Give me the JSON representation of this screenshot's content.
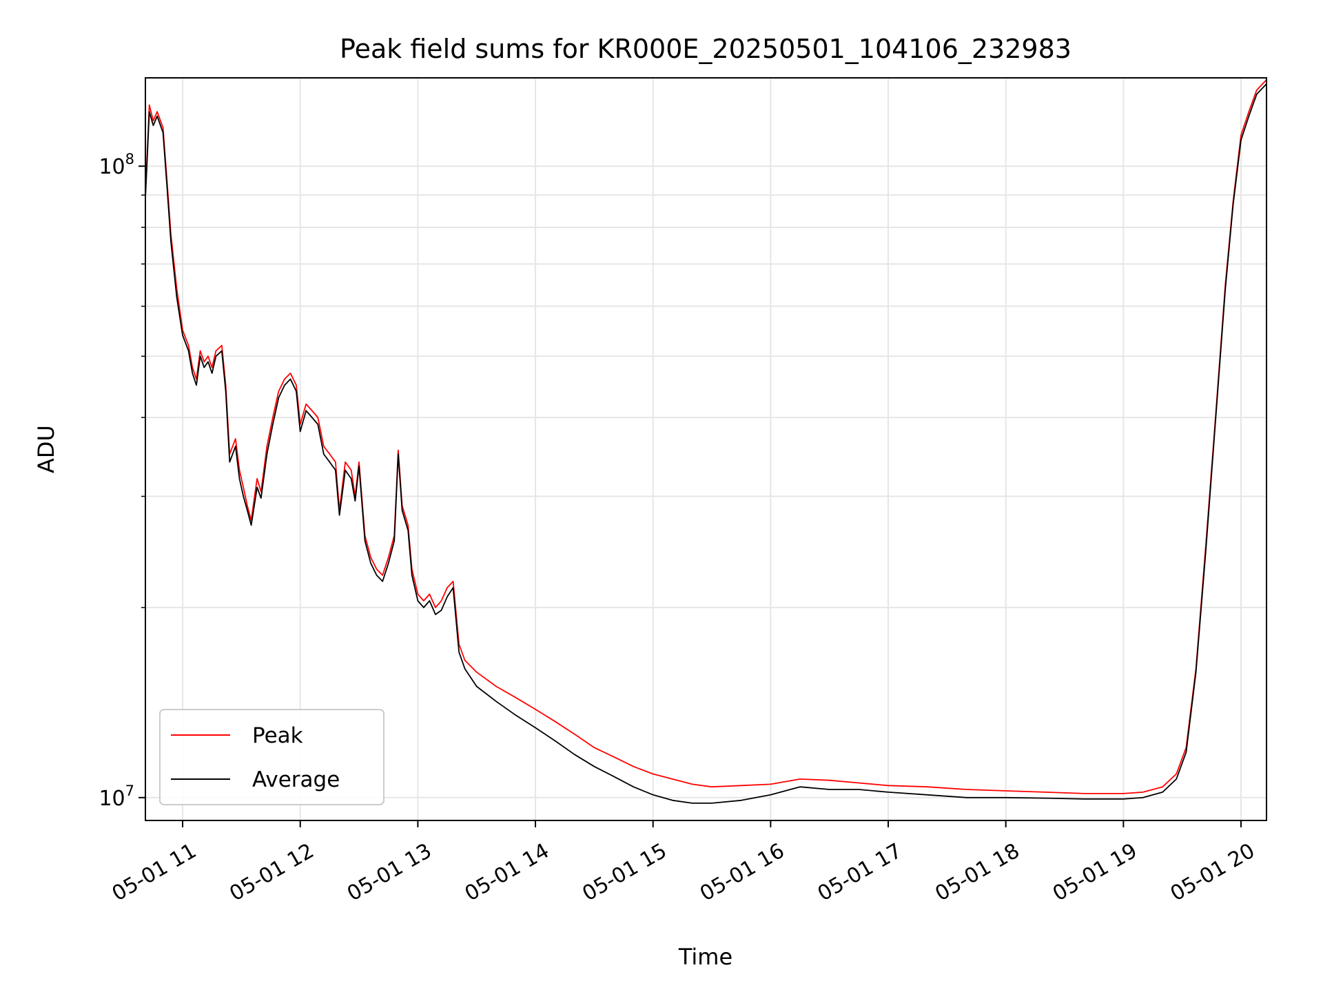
{
  "chart_data": {
    "type": "line",
    "title": "Peak field sums for KR000E_20250501_104106_232983",
    "xlabel": "Time",
    "ylabel": "ADU",
    "yscale": "log",
    "ylim": [
      9200000,
      138000000
    ],
    "xlim": [
      "05-01 10:41",
      "05-01 20:13"
    ],
    "grid": true,
    "legend_position": "lower-left",
    "x_ticks": [
      "05-01 11",
      "05-01 12",
      "05-01 13",
      "05-01 14",
      "05-01 15",
      "05-01 16",
      "05-01 17",
      "05-01 18",
      "05-01 19",
      "05-01 20"
    ],
    "y_ticks": [
      {
        "value": 10000000,
        "base": "10",
        "exp": "7"
      },
      {
        "value": 100000000,
        "base": "10",
        "exp": "8"
      }
    ],
    "series": [
      {
        "name": "Peak",
        "color": "#ff0000",
        "points": [
          [
            "05-01 10:41",
            90000000
          ],
          [
            "05-01 10:43",
            125000000
          ],
          [
            "05-01 10:45",
            118000000
          ],
          [
            "05-01 10:47",
            122000000
          ],
          [
            "05-01 10:50",
            115000000
          ],
          [
            "05-01 10:52",
            95000000
          ],
          [
            "05-01 10:54",
            78000000
          ],
          [
            "05-01 10:57",
            64000000
          ],
          [
            "05-01 11:00",
            55000000
          ],
          [
            "05-01 11:03",
            52000000
          ],
          [
            "05-01 11:05",
            48000000
          ],
          [
            "05-01 11:07",
            46000000
          ],
          [
            "05-01 11:09",
            51000000
          ],
          [
            "05-01 11:11",
            49000000
          ],
          [
            "05-01 11:13",
            50000000
          ],
          [
            "05-01 11:15",
            48000000
          ],
          [
            "05-01 11:17",
            51000000
          ],
          [
            "05-01 11:20",
            52000000
          ],
          [
            "05-01 11:22",
            45000000
          ],
          [
            "05-01 11:24",
            35000000
          ],
          [
            "05-01 11:27",
            37000000
          ],
          [
            "05-01 11:29",
            33000000
          ],
          [
            "05-01 11:31",
            31000000
          ],
          [
            "05-01 11:33",
            29000000
          ],
          [
            "05-01 11:35",
            27500000
          ],
          [
            "05-01 11:38",
            32000000
          ],
          [
            "05-01 11:40",
            30500000
          ],
          [
            "05-01 11:43",
            36000000
          ],
          [
            "05-01 11:46",
            40000000
          ],
          [
            "05-01 11:49",
            44000000
          ],
          [
            "05-01 11:52",
            46000000
          ],
          [
            "05-01 11:55",
            47000000
          ],
          [
            "05-01 11:58",
            45000000
          ],
          [
            "05-01 12:00",
            39000000
          ],
          [
            "05-01 12:03",
            42000000
          ],
          [
            "05-01 12:06",
            41000000
          ],
          [
            "05-01 12:09",
            40000000
          ],
          [
            "05-01 12:12",
            36000000
          ],
          [
            "05-01 12:15",
            35000000
          ],
          [
            "05-01 12:18",
            34000000
          ],
          [
            "05-01 12:20",
            28500000
          ],
          [
            "05-01 12:23",
            34000000
          ],
          [
            "05-01 12:26",
            33000000
          ],
          [
            "05-01 12:28",
            30000000
          ],
          [
            "05-01 12:30",
            34000000
          ],
          [
            "05-01 12:33",
            26000000
          ],
          [
            "05-01 12:36",
            24000000
          ],
          [
            "05-01 12:39",
            23000000
          ],
          [
            "05-01 12:42",
            22500000
          ],
          [
            "05-01 12:45",
            24000000
          ],
          [
            "05-01 12:48",
            26000000
          ],
          [
            "05-01 12:50",
            35500000
          ],
          [
            "05-01 12:52",
            29000000
          ],
          [
            "05-01 12:55",
            27000000
          ],
          [
            "05-01 12:57",
            23000000
          ],
          [
            "05-01 13:00",
            21000000
          ],
          [
            "05-01 13:03",
            20500000
          ],
          [
            "05-01 13:06",
            21000000
          ],
          [
            "05-01 13:09",
            20000000
          ],
          [
            "05-01 13:12",
            20500000
          ],
          [
            "05-01 13:15",
            21500000
          ],
          [
            "05-01 13:18",
            22000000
          ],
          [
            "05-01 13:21",
            17500000
          ],
          [
            "05-01 13:24",
            16500000
          ],
          [
            "05-01 13:30",
            15800000
          ],
          [
            "05-01 13:40",
            15000000
          ],
          [
            "05-01 13:50",
            14400000
          ],
          [
            "05-01 14:00",
            13800000
          ],
          [
            "05-01 14:10",
            13200000
          ],
          [
            "05-01 14:20",
            12600000
          ],
          [
            "05-01 14:30",
            12000000
          ],
          [
            "05-01 14:40",
            11600000
          ],
          [
            "05-01 14:50",
            11200000
          ],
          [
            "05-01 15:00",
            10900000
          ],
          [
            "05-01 15:10",
            10700000
          ],
          [
            "05-01 15:20",
            10500000
          ],
          [
            "05-01 15:30",
            10400000
          ],
          [
            "05-01 15:45",
            10450000
          ],
          [
            "05-01 16:00",
            10500000
          ],
          [
            "05-01 16:15",
            10700000
          ],
          [
            "05-01 16:30",
            10650000
          ],
          [
            "05-01 16:45",
            10550000
          ],
          [
            "05-01 17:00",
            10450000
          ],
          [
            "05-01 17:20",
            10400000
          ],
          [
            "05-01 17:40",
            10300000
          ],
          [
            "05-01 18:00",
            10250000
          ],
          [
            "05-01 18:20",
            10200000
          ],
          [
            "05-01 18:40",
            10150000
          ],
          [
            "05-01 19:00",
            10150000
          ],
          [
            "05-01 19:10",
            10200000
          ],
          [
            "05-01 19:20",
            10400000
          ],
          [
            "05-01 19:27",
            10900000
          ],
          [
            "05-01 19:32",
            12000000
          ],
          [
            "05-01 19:37",
            16000000
          ],
          [
            "05-01 19:42",
            25000000
          ],
          [
            "05-01 19:47",
            40000000
          ],
          [
            "05-01 19:52",
            65000000
          ],
          [
            "05-01 19:56",
            88000000
          ],
          [
            "05-01 20:00",
            112000000
          ],
          [
            "05-01 20:04",
            122000000
          ],
          [
            "05-01 20:08",
            132000000
          ],
          [
            "05-01 20:13",
            137000000
          ]
        ]
      },
      {
        "name": "Average",
        "color": "#000000",
        "points": [
          [
            "05-01 10:41",
            89000000
          ],
          [
            "05-01 10:43",
            122000000
          ],
          [
            "05-01 10:45",
            116000000
          ],
          [
            "05-01 10:47",
            120000000
          ],
          [
            "05-01 10:50",
            113000000
          ],
          [
            "05-01 10:52",
            93000000
          ],
          [
            "05-01 10:54",
            76000000
          ],
          [
            "05-01 10:57",
            62000000
          ],
          [
            "05-01 11:00",
            54000000
          ],
          [
            "05-01 11:03",
            51000000
          ],
          [
            "05-01 11:05",
            47000000
          ],
          [
            "05-01 11:07",
            45000000
          ],
          [
            "05-01 11:09",
            50000000
          ],
          [
            "05-01 11:11",
            48000000
          ],
          [
            "05-01 11:13",
            49000000
          ],
          [
            "05-01 11:15",
            47000000
          ],
          [
            "05-01 11:17",
            50000000
          ],
          [
            "05-01 11:20",
            51000000
          ],
          [
            "05-01 11:22",
            44000000
          ],
          [
            "05-01 11:24",
            34000000
          ],
          [
            "05-01 11:27",
            36000000
          ],
          [
            "05-01 11:29",
            32000000
          ],
          [
            "05-01 11:31",
            30000000
          ],
          [
            "05-01 11:33",
            28500000
          ],
          [
            "05-01 11:35",
            27000000
          ],
          [
            "05-01 11:38",
            31000000
          ],
          [
            "05-01 11:40",
            29800000
          ],
          [
            "05-01 11:43",
            35000000
          ],
          [
            "05-01 11:46",
            39000000
          ],
          [
            "05-01 11:49",
            43000000
          ],
          [
            "05-01 11:52",
            45000000
          ],
          [
            "05-01 11:55",
            46000000
          ],
          [
            "05-01 11:58",
            44000000
          ],
          [
            "05-01 12:00",
            38000000
          ],
          [
            "05-01 12:03",
            41000000
          ],
          [
            "05-01 12:06",
            40000000
          ],
          [
            "05-01 12:09",
            39000000
          ],
          [
            "05-01 12:12",
            35000000
          ],
          [
            "05-01 12:15",
            34000000
          ],
          [
            "05-01 12:18",
            33000000
          ],
          [
            "05-01 12:20",
            28000000
          ],
          [
            "05-01 12:23",
            33000000
          ],
          [
            "05-01 12:26",
            32000000
          ],
          [
            "05-01 12:28",
            29500000
          ],
          [
            "05-01 12:30",
            33500000
          ],
          [
            "05-01 12:33",
            25500000
          ],
          [
            "05-01 12:36",
            23500000
          ],
          [
            "05-01 12:39",
            22500000
          ],
          [
            "05-01 12:42",
            22000000
          ],
          [
            "05-01 12:45",
            23500000
          ],
          [
            "05-01 12:48",
            25500000
          ],
          [
            "05-01 12:50",
            35000000
          ],
          [
            "05-01 12:52",
            28500000
          ],
          [
            "05-01 12:55",
            26500000
          ],
          [
            "05-01 12:57",
            22500000
          ],
          [
            "05-01 13:00",
            20500000
          ],
          [
            "05-01 13:03",
            20000000
          ],
          [
            "05-01 13:06",
            20500000
          ],
          [
            "05-01 13:09",
            19500000
          ],
          [
            "05-01 13:12",
            19800000
          ],
          [
            "05-01 13:15",
            20800000
          ],
          [
            "05-01 13:18",
            21500000
          ],
          [
            "05-01 13:21",
            17000000
          ],
          [
            "05-01 13:24",
            16000000
          ],
          [
            "05-01 13:30",
            15000000
          ],
          [
            "05-01 13:40",
            14200000
          ],
          [
            "05-01 13:50",
            13500000
          ],
          [
            "05-01 14:00",
            12900000
          ],
          [
            "05-01 14:10",
            12300000
          ],
          [
            "05-01 14:20",
            11700000
          ],
          [
            "05-01 14:30",
            11200000
          ],
          [
            "05-01 14:40",
            10800000
          ],
          [
            "05-01 14:50",
            10400000
          ],
          [
            "05-01 15:00",
            10100000
          ],
          [
            "05-01 15:10",
            9900000
          ],
          [
            "05-01 15:20",
            9800000
          ],
          [
            "05-01 15:30",
            9800000
          ],
          [
            "05-01 15:45",
            9900000
          ],
          [
            "05-01 16:00",
            10100000
          ],
          [
            "05-01 16:15",
            10400000
          ],
          [
            "05-01 16:30",
            10300000
          ],
          [
            "05-01 16:45",
            10300000
          ],
          [
            "05-01 17:00",
            10200000
          ],
          [
            "05-01 17:20",
            10100000
          ],
          [
            "05-01 17:40",
            10000000
          ],
          [
            "05-01 18:00",
            10000000
          ],
          [
            "05-01 18:20",
            9980000
          ],
          [
            "05-01 18:40",
            9950000
          ],
          [
            "05-01 19:00",
            9950000
          ],
          [
            "05-01 19:10",
            10000000
          ],
          [
            "05-01 19:20",
            10200000
          ],
          [
            "05-01 19:27",
            10700000
          ],
          [
            "05-01 19:32",
            11800000
          ],
          [
            "05-01 19:37",
            15800000
          ],
          [
            "05-01 19:42",
            24500000
          ],
          [
            "05-01 19:47",
            39500000
          ],
          [
            "05-01 19:52",
            64000000
          ],
          [
            "05-01 19:56",
            87000000
          ],
          [
            "05-01 20:00",
            110000000
          ],
          [
            "05-01 20:04",
            120000000
          ],
          [
            "05-01 20:08",
            130000000
          ],
          [
            "05-01 20:13",
            135000000
          ]
        ]
      }
    ]
  }
}
